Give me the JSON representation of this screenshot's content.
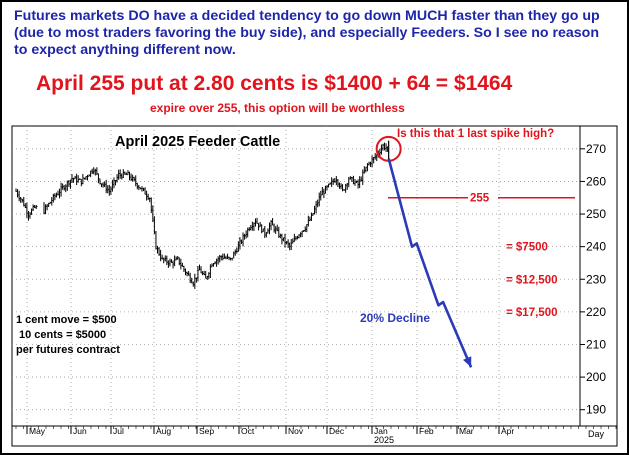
{
  "header": {
    "intro": "Futures markets DO have a decided tendency to go down MUCH faster than they go up (due to most traders favoring the buy side), and especially Feeders. So I see no reason to expect anything different now.",
    "put_line": "April 255 put at 2.80 cents is $1400 + 64 = $1464",
    "expire_note": "expire over 255, this option will be worthless"
  },
  "chart_data": {
    "type": "bar",
    "subtype": "ohlc",
    "title": "April 2025 Feeder Cattle",
    "ylim": [
      185,
      277
    ],
    "yticks": [
      190,
      200,
      210,
      220,
      230,
      240,
      250,
      260,
      270
    ],
    "xaxis_months": [
      "May",
      "Jun",
      "Jul",
      "Aug",
      "Sep",
      "Oct",
      "Nov",
      "Dec",
      "Jan",
      "Feb",
      "Mar",
      "Apr"
    ],
    "xaxis_year": "2025",
    "xaxis_unit": "Day",
    "grid": true,
    "price_anchors": [
      [
        0,
        257
      ],
      [
        4,
        254
      ],
      [
        8,
        250
      ],
      [
        12,
        252
      ],
      [
        18,
        251
      ],
      [
        24,
        255
      ],
      [
        30,
        258
      ],
      [
        36,
        261
      ],
      [
        42,
        260
      ],
      [
        46,
        262
      ],
      [
        50,
        264
      ],
      [
        54,
        260
      ],
      [
        60,
        257
      ],
      [
        66,
        262
      ],
      [
        72,
        262
      ],
      [
        78,
        259
      ],
      [
        86,
        255
      ],
      [
        90,
        240
      ],
      [
        94,
        236
      ],
      [
        100,
        235
      ],
      [
        104,
        236
      ],
      [
        108,
        233
      ],
      [
        114,
        229
      ],
      [
        118,
        233
      ],
      [
        122,
        230
      ],
      [
        126,
        235
      ],
      [
        132,
        237
      ],
      [
        138,
        236
      ],
      [
        144,
        241
      ],
      [
        150,
        246
      ],
      [
        154,
        248
      ],
      [
        160,
        244
      ],
      [
        164,
        247
      ],
      [
        170,
        243
      ],
      [
        176,
        240
      ],
      [
        182,
        244
      ],
      [
        186,
        246
      ],
      [
        190,
        249
      ],
      [
        196,
        256
      ],
      [
        202,
        259
      ],
      [
        206,
        261
      ],
      [
        210,
        257
      ],
      [
        214,
        261
      ],
      [
        220,
        259
      ],
      [
        226,
        265
      ],
      [
        232,
        268
      ],
      [
        236,
        271
      ],
      [
        239,
        270
      ]
    ],
    "annotations": {
      "spike_question": "Is this that 1 last spike high?",
      "strike_level": 255,
      "strike_label": "255",
      "loss_levels": [
        {
          "label": "= $7500",
          "value": 240
        },
        {
          "label": "= $12,500",
          "value": 230
        },
        {
          "label": "= $17,500",
          "value": 220
        }
      ],
      "decline_label": "20% Decline",
      "projection": [
        [
          240,
          267
        ],
        [
          255,
          240
        ],
        [
          258,
          241
        ],
        [
          272,
          222
        ],
        [
          275,
          223
        ],
        [
          293,
          203
        ]
      ],
      "contract_note": [
        "1 cent move = $500",
        "10 cents = $5000",
        "per futures contract"
      ]
    },
    "colors": {
      "price": "#000000",
      "annotation_red": "#e0141c",
      "projection_blue": "#2b3bb8",
      "grid": "#9a9a9a",
      "frame": "#000000"
    }
  }
}
